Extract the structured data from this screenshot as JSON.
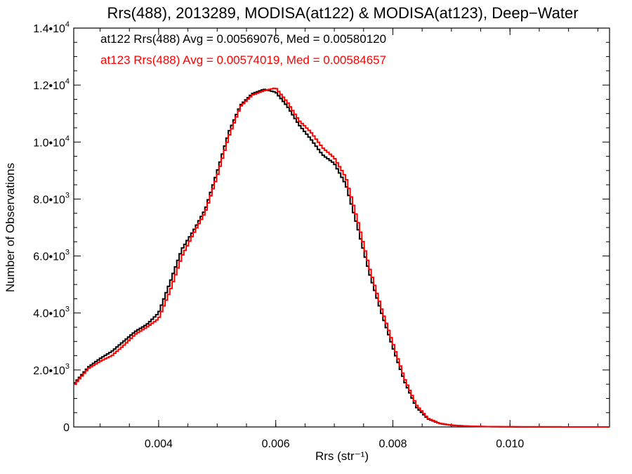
{
  "chart_data": {
    "type": "line",
    "title": "Rrs(488), 2013289, MODISA(at122) & MODISA(at123), Deep−Water",
    "xlabel": "Rrs (str⁻¹)",
    "ylabel": "Number of Observations",
    "xlim": [
      0.00255,
      0.0117
    ],
    "ylim": [
      0,
      14000
    ],
    "grid": false,
    "x_tick_labels": [
      "0.004",
      "0.006",
      "0.008",
      "0.010"
    ],
    "x_tick_values": [
      0.004,
      0.006,
      0.008,
      0.01
    ],
    "y_ticks": [
      {
        "value": 0,
        "mantissa": "0",
        "exp": ""
      },
      {
        "value": 2000,
        "mantissa": "2.0•10",
        "exp": "3"
      },
      {
        "value": 4000,
        "mantissa": "4.0•10",
        "exp": "3"
      },
      {
        "value": 6000,
        "mantissa": "6.0•10",
        "exp": "3"
      },
      {
        "value": 8000,
        "mantissa": "8.0•10",
        "exp": "3"
      },
      {
        "value": 10000,
        "mantissa": "1.0•10",
        "exp": "4"
      },
      {
        "value": 12000,
        "mantissa": "1.2•10",
        "exp": "4"
      },
      {
        "value": 14000,
        "mantissa": "1.4•10",
        "exp": "4"
      }
    ],
    "annotations": [
      {
        "text": "at122 Rrs(488) Avg = 0.00569076, Med = 0.00580120",
        "color": "#000000"
      },
      {
        "text": "at123 Rrs(488) Avg = 0.00574019, Med = 0.00584657",
        "color": "#ff0000"
      }
    ],
    "series": [
      {
        "color": "#000000",
        "x": [
          0.00255,
          0.0028,
          0.003,
          0.0032,
          0.0034,
          0.0036,
          0.0038,
          0.004,
          0.0042,
          0.0044,
          0.0046,
          0.0048,
          0.005,
          0.0052,
          0.0054,
          0.0056,
          0.0058,
          0.006,
          0.0062,
          0.0064,
          0.0066,
          0.0068,
          0.007,
          0.0072,
          0.0074,
          0.0076,
          0.0078,
          0.008,
          0.0082,
          0.0084,
          0.0086,
          0.0088,
          0.009,
          0.0092,
          0.0094,
          0.0096,
          0.0098,
          0.01,
          0.0102,
          0.0104,
          0.0106,
          0.0108,
          0.011,
          0.0112,
          0.0114,
          0.0117
        ],
        "values": [
          1500,
          2100,
          2400,
          2650,
          3000,
          3350,
          3600,
          4000,
          5100,
          6250,
          6900,
          7650,
          8950,
          10350,
          11300,
          11700,
          11850,
          11750,
          11250,
          10600,
          10100,
          9550,
          9250,
          8500,
          7000,
          5400,
          4050,
          2800,
          1600,
          700,
          280,
          120,
          60,
          35,
          20,
          12,
          8,
          5,
          4,
          3,
          2,
          2,
          1,
          1,
          0,
          0
        ]
      },
      {
        "color": "#ff0000",
        "x": [
          0.00255,
          0.0028,
          0.003,
          0.0032,
          0.0034,
          0.0036,
          0.0038,
          0.004,
          0.0042,
          0.0044,
          0.0046,
          0.0048,
          0.005,
          0.0052,
          0.0054,
          0.0056,
          0.0058,
          0.006,
          0.0062,
          0.0064,
          0.0066,
          0.0068,
          0.007,
          0.0072,
          0.0074,
          0.0076,
          0.0078,
          0.008,
          0.0082,
          0.0084,
          0.0086,
          0.0088,
          0.009,
          0.0092,
          0.0094,
          0.0096,
          0.0098,
          0.01,
          0.0102,
          0.0104,
          0.0106,
          0.0108,
          0.011,
          0.0112,
          0.0114,
          0.0117
        ],
        "values": [
          1450,
          2050,
          2300,
          2500,
          2850,
          3250,
          3500,
          3800,
          4800,
          6000,
          6800,
          7550,
          8800,
          10200,
          11250,
          11650,
          11800,
          11900,
          11400,
          10750,
          10350,
          9800,
          9450,
          8750,
          7250,
          5600,
          4200,
          2950,
          1700,
          780,
          300,
          130,
          65,
          38,
          22,
          13,
          9,
          6,
          4,
          3,
          2,
          2,
          1,
          1,
          1,
          0
        ]
      }
    ]
  }
}
